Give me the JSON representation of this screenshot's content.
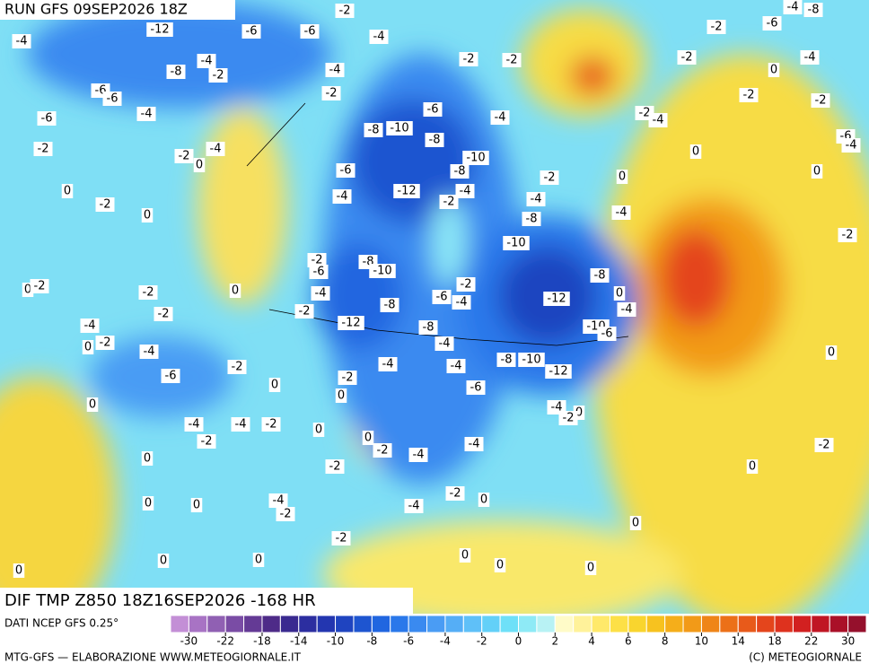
{
  "header": {
    "run": "RUN GFS 09SEP2026 18Z"
  },
  "map": {
    "title": "DIF TMP Z850 18Z16SEP2026 -168 HR",
    "labels": [
      -2,
      -4,
      -12,
      -6,
      -6,
      -4,
      -4,
      -8,
      -2,
      -4,
      -6,
      -6,
      -4,
      -2,
      -6,
      -2,
      -2,
      -4,
      0,
      0,
      -2,
      0,
      -6,
      -4,
      -8,
      -10,
      -6,
      -8,
      -10,
      -8,
      -12,
      -2,
      -4,
      -4,
      -2,
      -2,
      -2,
      0,
      -4,
      -8,
      -4,
      -10,
      -2,
      -6,
      -8,
      -10,
      0,
      -2,
      -2,
      0,
      -4,
      -2,
      -6,
      -4,
      -8,
      -12,
      -8,
      -2,
      -2,
      -12,
      -8,
      -4,
      0,
      -2,
      -4,
      -4,
      -8,
      -10,
      -6,
      -2,
      -4,
      -4,
      -12,
      -2,
      0,
      0,
      -6,
      0,
      -4,
      -4,
      -2,
      0,
      -2,
      0,
      -2,
      -4,
      -4,
      0,
      -2,
      -2,
      0,
      0,
      0,
      -4,
      -2,
      -4,
      -2,
      0,
      0,
      0,
      0,
      0,
      0,
      0,
      -2,
      -6,
      -2,
      0,
      -4,
      -2,
      -2,
      -2,
      -4,
      0,
      0,
      -6,
      -4,
      -2,
      0,
      -4,
      -10,
      -6,
      0,
      -2,
      0,
      -4,
      -8,
      -4,
      0,
      -2
    ]
  },
  "legend": {
    "source": "DATI NCEP GFS 0.25°",
    "colors": [
      "#c38fd6",
      "#a873c4",
      "#9060b3",
      "#7a4ca5",
      "#643a95",
      "#4e2b88",
      "#3a2a90",
      "#2c2ea0",
      "#2336b0",
      "#1f44c0",
      "#1e55d0",
      "#2066e0",
      "#2a78ea",
      "#3a8af0",
      "#4a9cf4",
      "#55aef6",
      "#5fc0f8",
      "#63d0f8",
      "#6ee0f8",
      "#8eeaf6",
      "#b8f2f4",
      "#fffbc8",
      "#fff29a",
      "#ffe96a",
      "#fde047",
      "#f9d52e",
      "#f7c21f",
      "#f5ae1a",
      "#f29a18",
      "#ef8518",
      "#ec7018",
      "#e85a1a",
      "#e4451c",
      "#de321e",
      "#d22020",
      "#c01624",
      "#aa1028",
      "#95102c"
    ],
    "ticks": [
      -30,
      -22,
      -18,
      -14,
      -10,
      -8,
      -6,
      -4,
      -2,
      0,
      2,
      4,
      6,
      8,
      10,
      14,
      18,
      22,
      30
    ]
  },
  "footer": {
    "left": "MTG-GFS — ELABORAZIONE WWW.METEOGIORNALE.IT",
    "right": "(C) METEOGIORNALE"
  }
}
